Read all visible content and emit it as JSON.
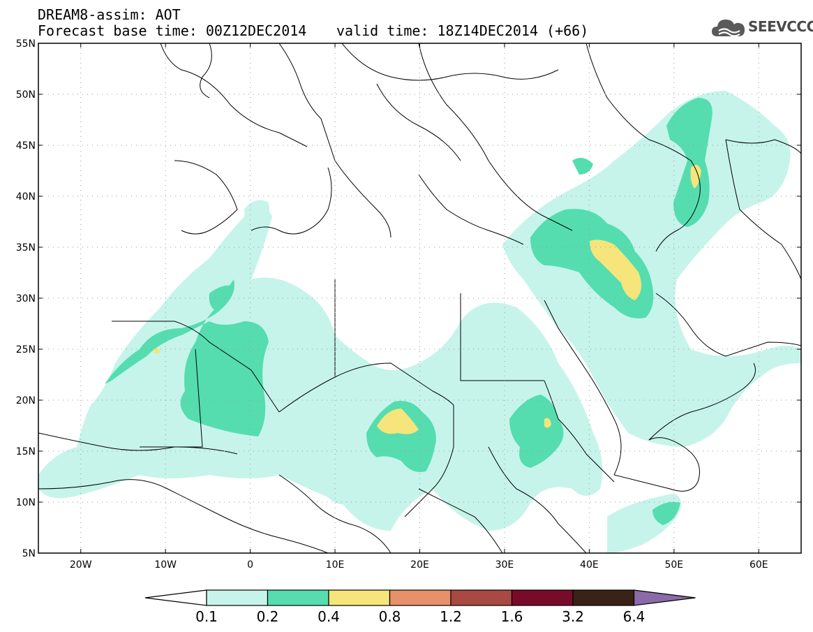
{
  "header": {
    "title_line1": "DREAM8-assim: AOT",
    "base_time": "Forecast base time: 00Z12DEC2014",
    "valid_time": "valid time: 18Z14DEC2014 (+66)"
  },
  "logo": {
    "text": "SEEVCCC",
    "icon": "cloud-icon"
  },
  "map": {
    "lat_labels": [
      "55N",
      "50N",
      "45N",
      "40N",
      "35N",
      "30N",
      "25N",
      "20N",
      "15N",
      "10N",
      "5N"
    ],
    "lon_labels": [
      "20W",
      "10W",
      "0",
      "10E",
      "20E",
      "30E",
      "40E",
      "50E",
      "60E"
    ],
    "lat_range": [
      5,
      55
    ],
    "lon_range": [
      -25,
      65
    ],
    "grid": "dotted"
  },
  "colorbar": {
    "labels": [
      "0.1",
      "0.2",
      "0.4",
      "0.8",
      "1.2",
      "1.6",
      "3.2",
      "6.4"
    ],
    "colors": [
      "#ffffff",
      "#c6f4ea",
      "#55ddb0",
      "#f6e57a",
      "#e8906a",
      "#a84a42",
      "#780a2a",
      "#3a2216",
      "#8a6aa8"
    ]
  }
}
